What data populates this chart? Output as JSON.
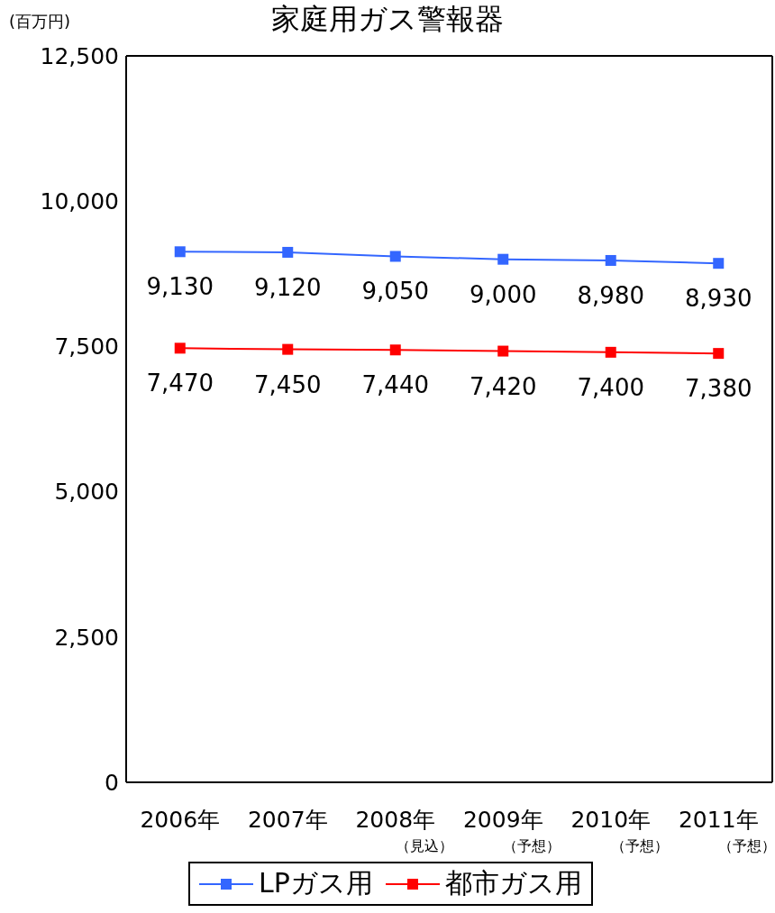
{
  "chart_data": {
    "type": "line",
    "title": "家庭用ガス警報器",
    "ylabel": "(百万円)",
    "categories": [
      "2006年",
      "2007年",
      "2008年（見込）",
      "2009年（予想）",
      "2010年（予想）",
      "2011年（予想）"
    ],
    "series": [
      {
        "name": "LPガス用",
        "color": "#3366ff",
        "values": [
          9130,
          9120,
          9050,
          9000,
          8980,
          8930
        ],
        "value_labels": [
          "9,130",
          "9,120",
          "9,050",
          "9,000",
          "8,980",
          "8,930"
        ]
      },
      {
        "name": "都市ガス用",
        "color": "#ff0000",
        "values": [
          7470,
          7450,
          7440,
          7420,
          7400,
          7380
        ],
        "value_labels": [
          "7,470",
          "7,450",
          "7,440",
          "7,420",
          "7,400",
          "7,380"
        ]
      }
    ],
    "ylim": [
      0,
      12500
    ],
    "yticks": [
      0,
      {
        "value": 2500,
        "label": "2,500"
      },
      {
        "value": 5000,
        "label": "5,000"
      },
      {
        "value": 7500,
        "label": "7,500"
      },
      {
        "value": 10000,
        "label": "10,000"
      },
      {
        "value": 12500,
        "label": "12,500"
      }
    ],
    "grid": false,
    "legend": "bottom",
    "marker": "square"
  }
}
